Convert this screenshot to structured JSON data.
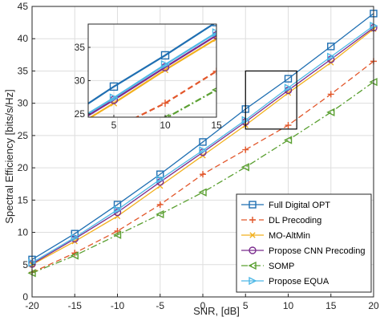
{
  "chart_data": {
    "type": "line",
    "title": "",
    "xlabel": "SNR, [dB]",
    "ylabel": "Spectral Efficiency [bits/s/Hz]",
    "xlim": [
      -20,
      20
    ],
    "ylim": [
      0,
      45
    ],
    "xticks": [
      -20,
      -15,
      -10,
      -5,
      0,
      5,
      10,
      15,
      20
    ],
    "yticks": [
      0,
      5,
      10,
      15,
      20,
      25,
      30,
      35,
      40,
      45
    ],
    "grid": true,
    "legend_position": "bottom-right",
    "x": [
      -20,
      -15,
      -10,
      -5,
      0,
      5,
      10,
      15,
      20
    ],
    "series": [
      {
        "name": "Full Digital OPT",
        "color": "#1f6fb2",
        "dash": "solid",
        "marker": "square",
        "values": [
          5.8,
          9.8,
          14.3,
          19.0,
          24.0,
          29.1,
          33.8,
          38.8,
          43.9
        ]
      },
      {
        "name": "DL Precoding",
        "color": "#e2572b",
        "dash": "dashed",
        "marker": "plus",
        "values": [
          3.8,
          6.8,
          10.2,
          14.3,
          19.0,
          22.8,
          26.6,
          31.4,
          36.5
        ]
      },
      {
        "name": "MO-AltMin",
        "color": "#f2b01e",
        "dash": "solid",
        "marker": "x",
        "values": [
          5.0,
          8.6,
          12.5,
          17.2,
          21.9,
          26.6,
          31.6,
          36.3,
          41.5
        ]
      },
      {
        "name": "Propose CNN Precoding",
        "color": "#7b2d8e",
        "dash": "solid",
        "marker": "circle",
        "values": [
          5.1,
          9.0,
          13.1,
          17.8,
          22.4,
          27.1,
          32.0,
          36.8,
          41.7
        ]
      },
      {
        "name": "SOMP",
        "color": "#5ba032",
        "dash": "dashdot",
        "marker": "triangle-left",
        "values": [
          3.7,
          6.4,
          9.6,
          12.8,
          16.2,
          20.1,
          24.3,
          28.6,
          33.3
        ]
      },
      {
        "name": "Propose EQUA",
        "color": "#4fb8e6",
        "dash": "solid",
        "marker": "triangle-right",
        "values": [
          5.3,
          9.2,
          13.5,
          18.2,
          22.7,
          27.4,
          32.4,
          37.2,
          42.0
        ]
      }
    ],
    "zoom_box": {
      "xlim": [
        5,
        11
      ],
      "ylim": [
        26,
        35
      ]
    },
    "inset": {
      "xlim": [
        2.5,
        15
      ],
      "ylim": [
        24.5,
        38.5
      ],
      "xticks": [
        5,
        10,
        15
      ],
      "yticks": [
        25,
        30,
        35
      ]
    }
  }
}
